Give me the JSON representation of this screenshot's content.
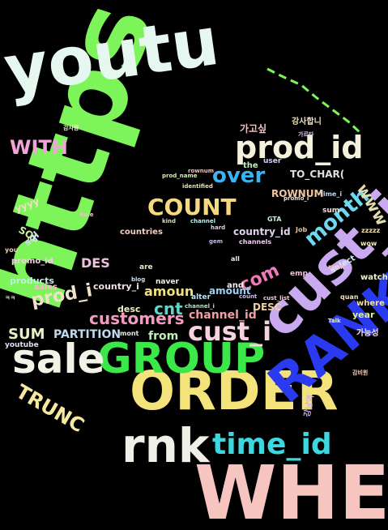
{
  "words": [
    {
      "text": "https",
      "size": 130,
      "color": "#7CF45A"
    },
    {
      "text": "WHERE",
      "size": 92,
      "color": "#F7C5C0"
    },
    {
      "text": "youtu",
      "size": 82,
      "color": "#E6F7F0"
    },
    {
      "text": "ORDER",
      "size": 66,
      "color": "#F4E37A"
    },
    {
      "text": "cust_id",
      "size": 68,
      "color": "#C9A9F0"
    },
    {
      "text": "RANK",
      "size": 64,
      "color": "#2A3AF0"
    },
    {
      "text": "GROUP",
      "size": 52,
      "color": "#3AE84A"
    },
    {
      "text": "sale",
      "size": 50,
      "color": "#F2F2E6"
    },
    {
      "text": "rnk",
      "size": 58,
      "color": "#F0F0E8"
    },
    {
      "text": "prod_id",
      "size": 38,
      "color": "#F4F1DC"
    },
    {
      "text": "time_id",
      "size": 36,
      "color": "#3CD8E0"
    },
    {
      "text": "cust_i",
      "size": 32,
      "color": "#F7D3E0"
    },
    {
      "text": "COUNT",
      "size": 28,
      "color": "#F7D880"
    },
    {
      "text": "month",
      "size": 26,
      "color": "#6ED8F0"
    },
    {
      "text": "over",
      "size": 26,
      "color": "#3AB4F0"
    },
    {
      "text": "WITH",
      "size": 24,
      "color": "#F2A4D8"
    },
    {
      "text": "TRUNC",
      "size": 24,
      "color": "#F7E8A0"
    },
    {
      "text": "prod_i",
      "size": 22,
      "color": "#F2E2C8"
    },
    {
      "text": "customers",
      "size": 20,
      "color": "#F49AC0"
    },
    {
      "text": "com",
      "size": 22,
      "color": "#F07AB8"
    },
    {
      "text": "www",
      "size": 20,
      "color": "#E0DCB0"
    },
    {
      "text": "cnt",
      "size": 20,
      "color": "#5AD8C8"
    },
    {
      "text": "SUM",
      "size": 18,
      "color": "#E8F0C0"
    },
    {
      "text": "DES",
      "size": 16,
      "color": "#F0C0E0"
    },
    {
      "text": "amoun",
      "size": 16,
      "color": "#F0E080"
    },
    {
      "text": "PARTITION",
      "size": 14,
      "color": "#C0D8F0"
    },
    {
      "text": "from",
      "size": 14,
      "color": "#C0F0B8"
    },
    {
      "text": "channel_id",
      "size": 14,
      "color": "#F0A0A0"
    },
    {
      "text": "country_id",
      "size": 12,
      "color": "#E0D0F0"
    },
    {
      "text": "ROWNUM",
      "size": 12,
      "color": "#F0C8A0"
    },
    {
      "text": "TO_CHAR(",
      "size": 12,
      "color": "#E0E0E0"
    },
    {
      "text": "SQL",
      "size": 12,
      "color": "#D0F0A0"
    },
    {
      "text": "sql",
      "size": 12,
      "color": "#C8E0F0"
    },
    {
      "text": "yyyy",
      "size": 12,
      "color": "#F0E0C0"
    },
    {
      "text": "products",
      "size": 11,
      "color": "#C0F0E0"
    },
    {
      "text": "DESC",
      "size": 12,
      "color": "#F0D0A0"
    },
    {
      "text": "amount",
      "size": 12,
      "color": "#A0D0F0"
    },
    {
      "text": "desc",
      "size": 11,
      "color": "#F0F0C0"
    },
    {
      "text": "country_i",
      "size": 11,
      "color": "#F0E0E0"
    },
    {
      "text": "sales",
      "size": 10,
      "color": "#F0C0C0"
    },
    {
      "text": "year",
      "size": 11,
      "color": "#E0F0A0"
    },
    {
      "text": "where",
      "size": 10,
      "color": "#F0E0A0"
    },
    {
      "text": "가고싶",
      "size": 12,
      "color": "#F0C0C0"
    },
    {
      "text": "강사합니",
      "size": 10,
      "color": "#F0E0C0"
    },
    {
      "text": "promo_id",
      "size": 10,
      "color": "#F0D0E0"
    },
    {
      "text": "youtube",
      "size": 9,
      "color": "#E0E0F0"
    },
    {
      "text": "가능성",
      "size": 10,
      "color": "#F0E0F0"
    },
    {
      "text": "강남역",
      "size": 10,
      "color": "#D0B0F0"
    },
    {
      "text": "and",
      "size": 10,
      "color": "#F0F0F0"
    },
    {
      "text": "the",
      "size": 10,
      "color": "#C0F0C0"
    },
    {
      "text": "watch",
      "size": 10,
      "color": "#F0F0D0"
    },
    {
      "text": "select",
      "size": 10,
      "color": "#D0F0F0"
    },
    {
      "text": "countries",
      "size": 10,
      "color": "#F0D0C0"
    },
    {
      "text": "alter",
      "size": 9,
      "color": "#C0E0F0"
    },
    {
      "text": "emp",
      "size": 9,
      "color": "#F0C0E0"
    },
    {
      "text": "are",
      "size": 9,
      "color": "#E0F0C0"
    },
    {
      "text": "sum",
      "size": 9,
      "color": "#F0E0D0"
    },
    {
      "text": "user",
      "size": 9,
      "color": "#D0D0F0"
    },
    {
      "text": "wow",
      "size": 8,
      "color": "#F0F0B0"
    },
    {
      "text": "GTA",
      "size": 8,
      "color": "#C0F0D0"
    },
    {
      "text": "channels",
      "size": 8,
      "color": "#F0D0F0"
    },
    {
      "text": "Job",
      "size": 8,
      "color": "#E0C0A0"
    },
    {
      "text": "blog",
      "size": 7,
      "color": "#D0E0F0"
    },
    {
      "text": "naver",
      "size": 9,
      "color": "#F0F0E0"
    },
    {
      "text": "mont",
      "size": 8,
      "color": "#E0F0E0"
    },
    {
      "text": "zzzzz",
      "size": 8,
      "color": "#F0E0B0"
    },
    {
      "text": "time_i",
      "size": 8,
      "color": "#C0D0F0"
    },
    {
      "text": "rownum",
      "size": 7,
      "color": "#F0C0B0"
    },
    {
      "text": "prod_name",
      "size": 7,
      "color": "#D0F0B0"
    },
    {
      "text": "cust_list",
      "size": 7,
      "color": "#F0D0D0"
    },
    {
      "text": "quan",
      "size": 8,
      "color": "#F0E0C0"
    },
    {
      "text": "identified",
      "size": 7,
      "color": "#E0E0C0"
    },
    {
      "text": "channel",
      "size": 7,
      "color": "#C0F0F0"
    },
    {
      "text": "rank",
      "size": 8,
      "color": "#F0C0D0"
    },
    {
      "text": "all",
      "size": 8,
      "color": "#E0F0F0"
    },
    {
      "text": "Talk",
      "size": 7,
      "color": "#F0F0C0"
    },
    {
      "text": "count",
      "size": 7,
      "color": "#D0C0F0"
    },
    {
      "text": "promo_i",
      "size": 7,
      "color": "#F0E0E0"
    },
    {
      "text": "channel_i",
      "size": 7,
      "color": "#C0E0D0"
    },
    {
      "text": "you",
      "size": 8,
      "color": "#F0D0B0"
    },
    {
      "text": "hard",
      "size": 7,
      "color": "#E0D0E0"
    },
    {
      "text": "kind",
      "size": 7,
      "color": "#D0E0C0"
    },
    {
      "text": "Rule",
      "size": 7,
      "color": "#F0C0C0"
    },
    {
      "text": "gem",
      "size": 7,
      "color": "#C0C0F0"
    },
    {
      "text": "감사람",
      "size": 7,
      "color": "#F0F0D0"
    },
    {
      "text": "가르타",
      "size": 7,
      "color": "#E0C0F0"
    },
    {
      "text": "감비원",
      "size": 7,
      "color": "#F0D0C0"
    },
    {
      "text": "ㅋㅋ",
      "size": 7,
      "color": "#D0F0D0"
    }
  ],
  "decor_color": "#2A3AF0"
}
